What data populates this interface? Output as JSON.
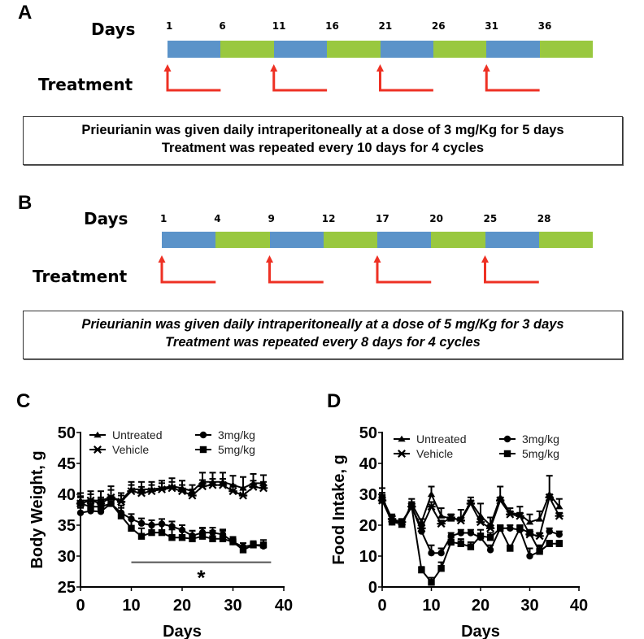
{
  "panels": {
    "A": {
      "letter": "A",
      "days_label": "Days",
      "treatment_label": "Treatment",
      "ticks": [
        "1",
        "6",
        "11",
        "16",
        "21",
        "26",
        "31",
        "36"
      ],
      "segments": [
        "blue",
        "green",
        "blue",
        "green",
        "blue",
        "green",
        "blue",
        "green"
      ],
      "treatment_starts_segment_index": [
        0,
        2,
        4,
        6
      ],
      "note_lines": [
        "Prieurianin was given daily intraperitoneally at a dose of 3 mg/Kg for 5 days",
        "Treatment was repeated every 10 days for 4 cycles"
      ]
    },
    "B": {
      "letter": "B",
      "days_label": "Days",
      "treatment_label": "Treatment",
      "ticks": [
        "1",
        "4",
        "9",
        "12",
        "17",
        "20",
        "25",
        "28"
      ],
      "segments": [
        "blue",
        "green",
        "blue",
        "green",
        "blue",
        "green",
        "blue",
        "green"
      ],
      "treatment_starts_segment_index": [
        0,
        2,
        4,
        6
      ],
      "note_lines": [
        "Prieurianin was given daily intraperitoneally at a dose of 5 mg/Kg for 3 days",
        "Treatment was repeated every 8 days for 4 cycles"
      ]
    },
    "C": {
      "letter": "C"
    },
    "D": {
      "letter": "D"
    }
  },
  "colors": {
    "treatment_period": "#5b93c9",
    "rest_period": "#99c83f",
    "arrow": "#ee3124",
    "series": "#000000"
  },
  "chart_data": [
    {
      "id": "C",
      "type": "line",
      "title": "",
      "xlabel": "Days",
      "ylabel": "Body Weight, g",
      "xlim": [
        0,
        40
      ],
      "ylim": [
        25,
        50
      ],
      "xticks": [
        0,
        10,
        20,
        30,
        40
      ],
      "yticks": [
        25,
        30,
        35,
        40,
        45,
        50
      ],
      "grid": false,
      "legend": {
        "placement": "top",
        "entries": [
          {
            "name": "Untreated",
            "marker": "triangle"
          },
          {
            "name": "Vehicle",
            "marker": "star"
          },
          {
            "name": "3mg/kg",
            "marker": "circle"
          },
          {
            "name": "5mg/kg",
            "marker": "square"
          }
        ]
      },
      "annotation": {
        "text": "*",
        "bar_x": [
          10,
          37.5
        ],
        "bar_y": 29
      },
      "x": [
        0,
        2,
        4,
        6,
        8,
        10,
        12,
        14,
        16,
        18,
        20,
        22,
        24,
        26,
        28,
        30,
        32,
        34,
        36
      ],
      "series": [
        {
          "name": "Untreated",
          "marker": "triangle",
          "values": [
            39,
            39,
            39,
            39.5,
            39,
            40.8,
            40.8,
            40.8,
            41,
            41.3,
            41,
            40.5,
            42,
            42,
            42,
            41.5,
            41,
            41.8,
            41.8
          ],
          "errors": [
            1.2,
            1.5,
            1.5,
            1.8,
            1.2,
            1.2,
            1.2,
            1.2,
            1.2,
            1.3,
            1.2,
            1.0,
            1.5,
            1.5,
            1.5,
            1.5,
            1.8,
            1.5,
            1.3
          ]
        },
        {
          "name": "Vehicle",
          "marker": "star",
          "values": [
            38.5,
            39,
            38.5,
            39.5,
            38.8,
            40.5,
            40.2,
            40.5,
            40.8,
            41,
            40.5,
            39.8,
            41.3,
            41.5,
            41.5,
            40.5,
            39.8,
            41.2,
            41
          ],
          "errors": [
            1.0,
            1.0,
            1.0,
            1.2,
            1.0,
            1.0,
            1.0,
            1.0,
            1.0,
            1.0,
            1.0,
            1.0,
            1.0,
            1.0,
            1.0,
            1.0,
            1.0,
            1.0,
            1.0
          ]
        },
        {
          "name": "3mg/kg",
          "marker": "circle",
          "values": [
            37,
            37.3,
            37.2,
            38.5,
            37,
            36,
            35.3,
            35,
            35.2,
            34.8,
            34.2,
            33.3,
            33.8,
            33.8,
            33.5,
            32.3,
            31.5,
            31.8,
            31.6
          ],
          "errors": [
            0.8,
            0.8,
            0.8,
            1.0,
            1.2,
            0.8,
            0.8,
            0.8,
            0.8,
            0.8,
            0.8,
            0.8,
            0.8,
            0.8,
            0.8,
            0.6,
            0.6,
            0.6,
            0.6
          ]
        },
        {
          "name": "5mg/kg",
          "marker": "square",
          "values": [
            38.5,
            38,
            38,
            38.5,
            36.5,
            34.5,
            33.2,
            33.8,
            33.8,
            33,
            33,
            32.8,
            33.2,
            32.8,
            32.8,
            32.3,
            31,
            31.8,
            31.8
          ],
          "errors": [
            1.2,
            1.2,
            1.2,
            1.2,
            1.3,
            1.5,
            1.3,
            1.3,
            1.3,
            1.3,
            1.3,
            1.3,
            1.3,
            1.3,
            1.3,
            0.8,
            0.6,
            0.6,
            0.8
          ]
        }
      ]
    },
    {
      "id": "D",
      "type": "line",
      "title": "",
      "xlabel": "Days",
      "ylabel": "Food Intake, g",
      "xlim": [
        0,
        40
      ],
      "ylim": [
        0,
        50
      ],
      "xticks": [
        0,
        10,
        20,
        30,
        40
      ],
      "yticks": [
        0,
        10,
        20,
        30,
        40,
        50
      ],
      "grid": false,
      "legend": {
        "placement": "top",
        "entries": [
          {
            "name": "Untreated",
            "marker": "triangle"
          },
          {
            "name": "Vehicle",
            "marker": "star"
          },
          {
            "name": "3mg/kg",
            "marker": "circle"
          },
          {
            "name": "5mg/kg",
            "marker": "square"
          }
        ]
      },
      "x": [
        0,
        2,
        4,
        6,
        8,
        10,
        12,
        14,
        16,
        18,
        20,
        22,
        24,
        26,
        28,
        30,
        32,
        34,
        36
      ],
      "series": [
        {
          "name": "Untreated",
          "marker": "triangle",
          "values": [
            29,
            22,
            20,
            27,
            21,
            30,
            23,
            22,
            22,
            27.5,
            23,
            20,
            29,
            24,
            23.5,
            21,
            22,
            30,
            26
          ],
          "errors": [
            3,
            1.5,
            1.5,
            1.5,
            1,
            2.5,
            2.5,
            1.5,
            3,
            1.5,
            4,
            2.5,
            3.5,
            1.5,
            2.5,
            2.5,
            2.5,
            6,
            2.5
          ]
        },
        {
          "name": "Vehicle",
          "marker": "star",
          "values": [
            28,
            22,
            21,
            26,
            19,
            26,
            20.5,
            22.5,
            21.5,
            27,
            21,
            19,
            28,
            23.5,
            23,
            17,
            16.5,
            29,
            23
          ],
          "errors": [
            1.5,
            1,
            1,
            1,
            1,
            1.5,
            1,
            1,
            1,
            1,
            1,
            1,
            1,
            1,
            1,
            1,
            1,
            1,
            1
          ]
        },
        {
          "name": "3mg/kg",
          "marker": "circle",
          "values": [
            28,
            21,
            21,
            26,
            18,
            11,
            11,
            16.5,
            17.5,
            17.5,
            16,
            12,
            19,
            19,
            18.5,
            10,
            11.5,
            18,
            17
          ],
          "errors": [
            1.5,
            1,
            1,
            1.5,
            1,
            2.5,
            1.5,
            1,
            1,
            1,
            1,
            1.5,
            1,
            1,
            1,
            2.5,
            2,
            1,
            1
          ]
        },
        {
          "name": "5mg/kg",
          "marker": "square",
          "values": [
            29,
            21,
            20.5,
            26,
            5.5,
            1.5,
            6,
            14.5,
            14,
            13,
            16.5,
            16,
            19,
            12.5,
            19,
            17.5,
            11.5,
            14,
            14
          ],
          "errors": [
            1.5,
            1,
            1,
            1.5,
            1,
            1.5,
            2,
            1.5,
            1.5,
            1.5,
            2,
            1.5,
            1,
            1,
            1,
            1,
            1.5,
            1,
            1
          ]
        }
      ]
    }
  ]
}
